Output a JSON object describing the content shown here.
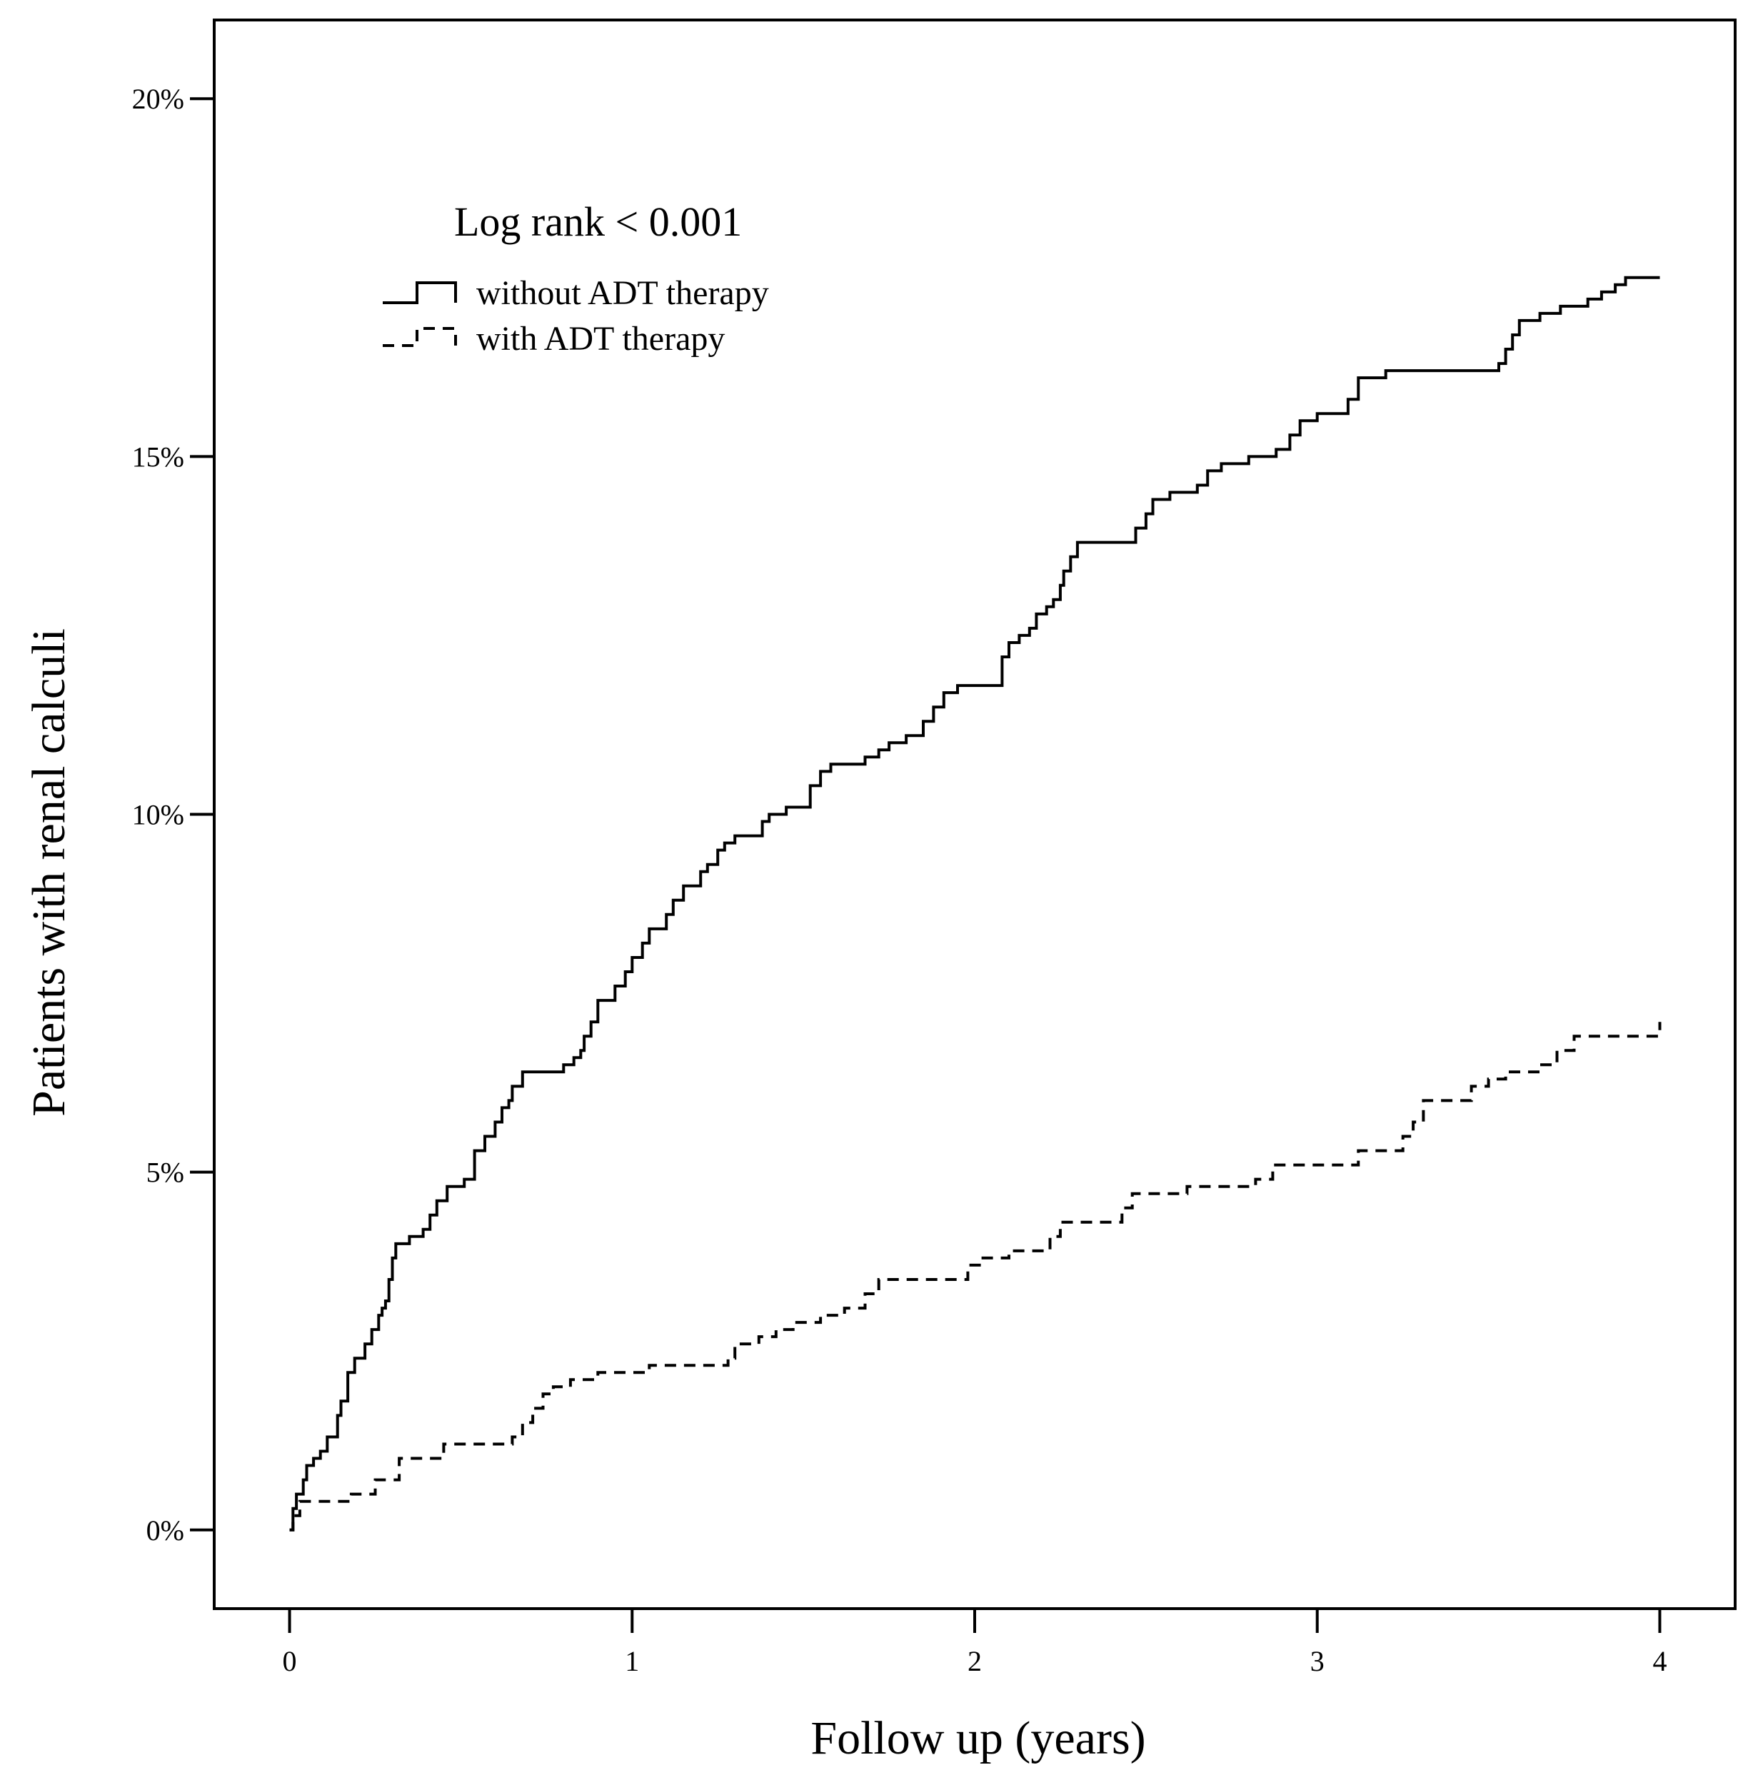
{
  "chart_data": {
    "type": "line",
    "subtype": "kaplan-meier-cumulative-incidence",
    "xlabel": "Follow up (years)",
    "ylabel": "Patients with renal calculi",
    "xlim": [
      -0.22,
      4.22
    ],
    "ylim": [
      -1.1,
      21.1
    ],
    "x_ticks": [
      0,
      1,
      2,
      3,
      4
    ],
    "x_tick_labels": [
      "0",
      "1",
      "2",
      "3",
      "4"
    ],
    "y_ticks": [
      0,
      5,
      10,
      15,
      20
    ],
    "y_tick_labels": [
      "0%",
      "5%",
      "10%",
      "15%",
      "20%"
    ],
    "grid": false,
    "legend": {
      "title": "Log rank < 0.001",
      "placement": "top-left"
    },
    "series": [
      {
        "name": "without ADT therapy",
        "line_style": "solid",
        "color": "#000000",
        "x": [
          0,
          0.01,
          0.02,
          0.04,
          0.05,
          0.07,
          0.09,
          0.11,
          0.14,
          0.15,
          0.17,
          0.19,
          0.22,
          0.24,
          0.26,
          0.27,
          0.28,
          0.29,
          0.3,
          0.31,
          0.35,
          0.39,
          0.41,
          0.43,
          0.46,
          0.51,
          0.54,
          0.57,
          0.6,
          0.62,
          0.64,
          0.65,
          0.68,
          0.8,
          0.83,
          0.85,
          0.86,
          0.88,
          0.9,
          0.95,
          0.98,
          1.0,
          1.03,
          1.05,
          1.1,
          1.12,
          1.15,
          1.2,
          1.22,
          1.25,
          1.27,
          1.3,
          1.38,
          1.4,
          1.45,
          1.52,
          1.55,
          1.58,
          1.68,
          1.72,
          1.75,
          1.8,
          1.85,
          1.88,
          1.91,
          1.95,
          2.08,
          2.1,
          2.13,
          2.16,
          2.18,
          2.21,
          2.23,
          2.25,
          2.26,
          2.28,
          2.3,
          2.47,
          2.5,
          2.52,
          2.57,
          2.65,
          2.68,
          2.72,
          2.8,
          2.88,
          2.92,
          2.95,
          3.0,
          3.09,
          3.12,
          3.2,
          3.53,
          3.55,
          3.57,
          3.59,
          3.65,
          3.71,
          3.79,
          3.83,
          3.87,
          3.9,
          4.0
        ],
        "y": [
          0.0,
          0.3,
          0.5,
          0.7,
          0.9,
          1.0,
          1.1,
          1.3,
          1.6,
          1.8,
          2.2,
          2.4,
          2.6,
          2.8,
          3.0,
          3.1,
          3.2,
          3.5,
          3.8,
          4.0,
          4.1,
          4.2,
          4.4,
          4.6,
          4.8,
          4.9,
          5.3,
          5.5,
          5.7,
          5.9,
          6.0,
          6.2,
          6.4,
          6.5,
          6.6,
          6.7,
          6.9,
          7.1,
          7.4,
          7.6,
          7.8,
          8.0,
          8.2,
          8.4,
          8.6,
          8.8,
          9.0,
          9.2,
          9.3,
          9.5,
          9.6,
          9.7,
          9.9,
          10.0,
          10.1,
          10.4,
          10.6,
          10.7,
          10.8,
          10.9,
          11.0,
          11.1,
          11.3,
          11.5,
          11.7,
          11.8,
          12.2,
          12.4,
          12.5,
          12.6,
          12.8,
          12.9,
          13.0,
          13.2,
          13.4,
          13.6,
          13.8,
          14.0,
          14.2,
          14.4,
          14.5,
          14.6,
          14.8,
          14.9,
          15.0,
          15.1,
          15.3,
          15.5,
          15.6,
          15.8,
          16.1,
          16.2,
          16.3,
          16.5,
          16.7,
          16.9,
          17.0,
          17.1,
          17.2,
          17.3,
          17.4,
          17.5,
          17.5
        ]
      },
      {
        "name": "with ADT therapy",
        "line_style": "dashed",
        "color": "#000000",
        "x": [
          0,
          0.01,
          0.03,
          0.18,
          0.25,
          0.32,
          0.45,
          0.65,
          0.68,
          0.71,
          0.74,
          0.77,
          0.82,
          0.9,
          1.05,
          1.28,
          1.3,
          1.37,
          1.42,
          1.47,
          1.55,
          1.62,
          1.68,
          1.72,
          1.98,
          2.02,
          2.1,
          2.22,
          2.25,
          2.43,
          2.46,
          2.62,
          2.82,
          2.87,
          3.12,
          3.25,
          3.28,
          3.31,
          3.45,
          3.5,
          3.55,
          3.65,
          3.7,
          3.75,
          4.0
        ],
        "y": [
          0.0,
          0.2,
          0.4,
          0.5,
          0.7,
          1.0,
          1.2,
          1.3,
          1.5,
          1.7,
          1.9,
          2.0,
          2.1,
          2.2,
          2.3,
          2.4,
          2.6,
          2.7,
          2.8,
          2.9,
          3.0,
          3.1,
          3.3,
          3.5,
          3.7,
          3.8,
          3.9,
          4.1,
          4.3,
          4.5,
          4.7,
          4.8,
          4.9,
          5.1,
          5.3,
          5.5,
          5.7,
          6.0,
          6.2,
          6.3,
          6.4,
          6.5,
          6.7,
          6.9,
          7.1
        ]
      }
    ]
  }
}
